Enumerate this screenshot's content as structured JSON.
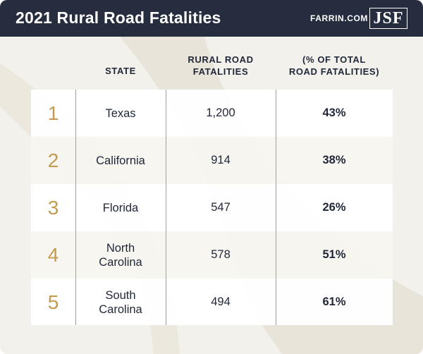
{
  "header": {
    "title": "2021 Rural Road Fatalities",
    "site": "FARRIN.COM",
    "logo": "JSF"
  },
  "columns": {
    "state": "STATE",
    "fatalities_line1": "RURAL ROAD",
    "fatalities_line2": "FATALITIES",
    "percent_line1": "(% OF TOTAL",
    "percent_line2": "ROAD FATALITIES)"
  },
  "rows": [
    {
      "rank": "1",
      "state": "Texas",
      "fatalities": "1,200",
      "percent": "43%"
    },
    {
      "rank": "2",
      "state": "California",
      "fatalities": "914",
      "percent": "38%"
    },
    {
      "rank": "3",
      "state": "Florida",
      "fatalities": "547",
      "percent": "26%"
    },
    {
      "rank": "4",
      "state_line1": "North",
      "state_line2": "Carolina",
      "fatalities": "578",
      "percent": "51%"
    },
    {
      "rank": "5",
      "state_line1": "South",
      "state_line2": "Carolina",
      "fatalities": "494",
      "percent": "61%"
    }
  ],
  "colors": {
    "header_bg": "#252d3f",
    "accent_gold": "#c39a4e",
    "text_dark": "#1f2638",
    "background": "#f3f1ec"
  }
}
